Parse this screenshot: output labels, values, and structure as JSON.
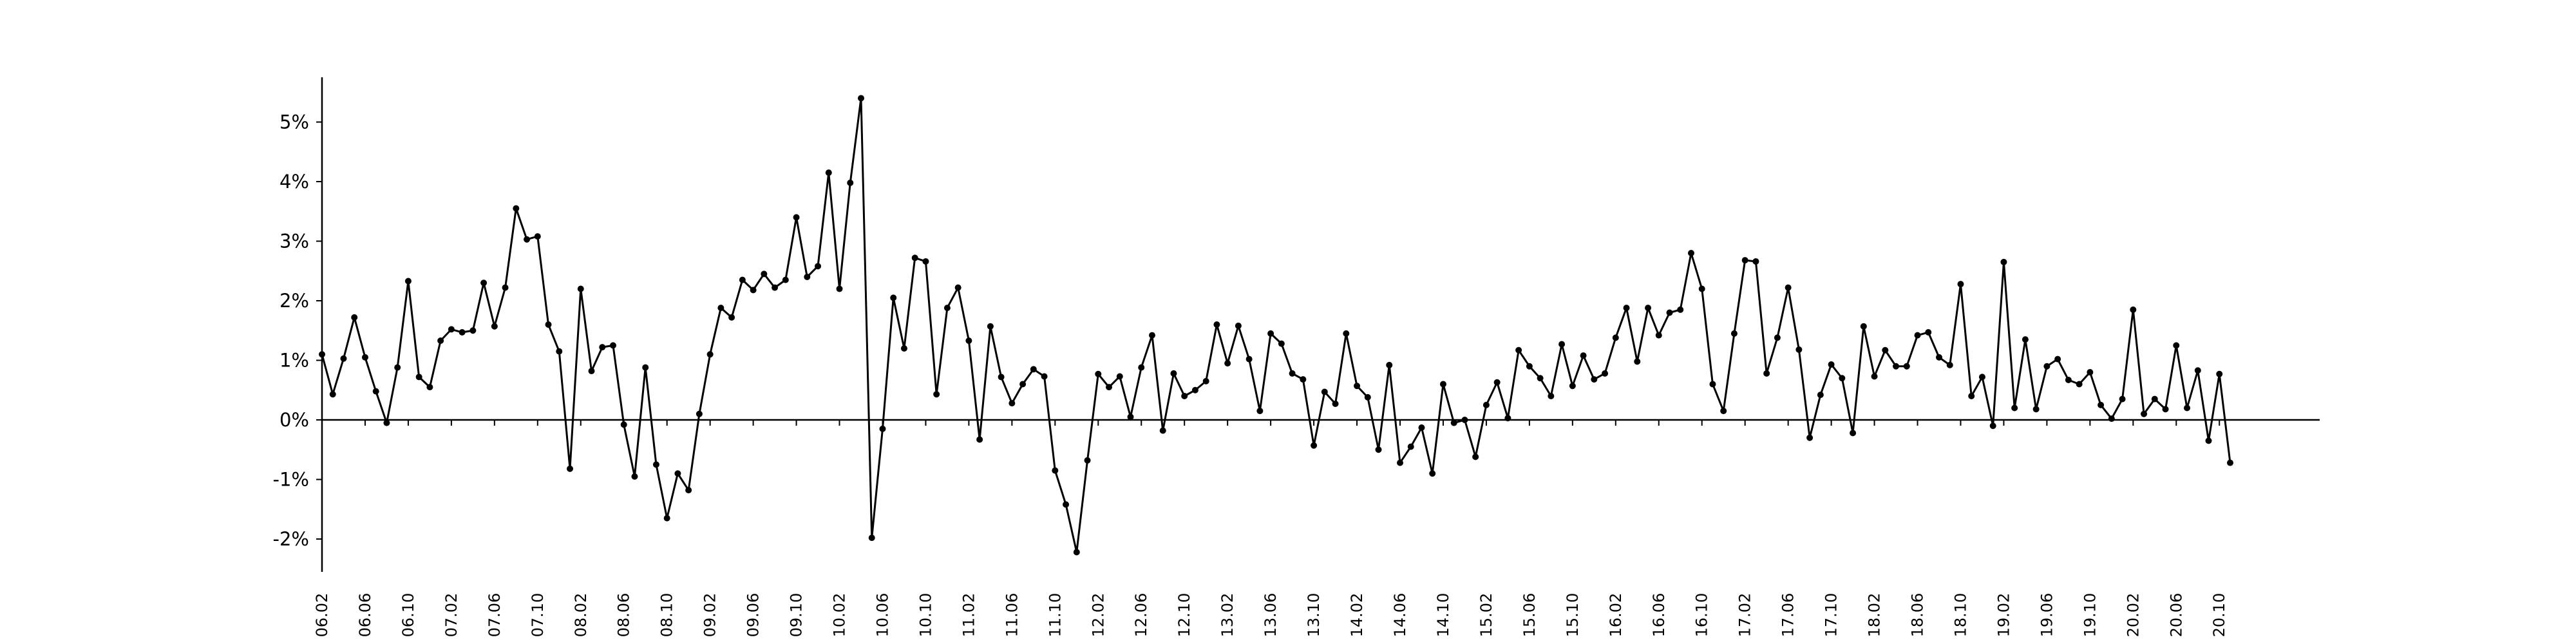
{
  "chart_data": {
    "type": "line",
    "title": "",
    "xlabel": "",
    "ylabel": "",
    "ylim": [
      -2.5,
      5.8
    ],
    "y_ticks": [
      "-2%",
      "-1%",
      "0%",
      "1%",
      "2%",
      "3%",
      "4%",
      "5%"
    ],
    "y_tick_values": [
      -2,
      -1,
      0,
      1,
      2,
      3,
      4,
      5
    ],
    "x_tick_labels": [
      "06.02",
      "06.06",
      "06.10",
      "07.02",
      "07.06",
      "07.10",
      "08.02",
      "08.06",
      "08.10",
      "09.02",
      "09.06",
      "09.10",
      "10.02",
      "10.06",
      "10.10",
      "11.02",
      "11.06",
      "11.10",
      "12.02",
      "12.06",
      "12.10",
      "13.02",
      "13.06",
      "13.10",
      "14.02",
      "14.06",
      "14.10",
      "15.02",
      "15.06",
      "15.10",
      "16.02",
      "16.06",
      "16.10",
      "17.02",
      "17.06",
      "17.10",
      "18.02",
      "18.06",
      "18.10",
      "19.02",
      "19.06",
      "19.10",
      "20.02",
      "20.06",
      "20.10"
    ],
    "grid": false,
    "markers": true,
    "color": "#000000",
    "x_start": "06.02",
    "frequency": "monthly",
    "series": [
      {
        "values": [
          1.1,
          0.43,
          1.03,
          1.72,
          1.05,
          0.48,
          -0.05,
          0.88,
          2.33,
          0.72,
          0.55,
          1.33,
          1.52,
          1.47,
          1.5,
          2.3,
          1.57,
          2.22,
          3.55,
          3.03,
          3.08,
          1.6,
          1.15,
          -0.82,
          2.2,
          0.82,
          1.22,
          1.25,
          -0.08,
          -0.95,
          0.88,
          -0.75,
          -1.65,
          -0.9,
          -1.18,
          0.1,
          1.1,
          1.88,
          1.72,
          2.35,
          2.18,
          2.45,
          2.22,
          2.35,
          3.4,
          2.4,
          2.58,
          4.15,
          2.2,
          3.98,
          5.4,
          -1.98,
          -0.15,
          2.05,
          1.2,
          2.72,
          2.66,
          0.43,
          1.88,
          2.22,
          1.33,
          -0.33,
          1.57,
          0.72,
          0.28,
          0.6,
          0.85,
          0.73,
          -0.85,
          -1.42,
          -2.22,
          -0.68,
          0.77,
          0.55,
          0.73,
          0.05,
          0.88,
          1.42,
          -0.18,
          0.78,
          0.4,
          0.5,
          0.65,
          1.6,
          0.95,
          1.58,
          1.02,
          0.15,
          1.45,
          1.28,
          0.78,
          0.68,
          -0.43,
          0.47,
          0.27,
          1.45,
          0.57,
          0.38,
          -0.5,
          0.92,
          -0.72,
          -0.45,
          -0.13,
          -0.9,
          0.6,
          -0.05,
          0.0,
          -0.62,
          0.25,
          0.63,
          0.03,
          1.17,
          0.9,
          0.7,
          0.4,
          1.27,
          0.57,
          1.08,
          0.68,
          0.78,
          1.38,
          1.88,
          0.98,
          1.88,
          1.42,
          1.8,
          1.85,
          2.8,
          2.2,
          0.6,
          0.15,
          1.45,
          2.68,
          2.66,
          0.78,
          1.38,
          2.22,
          1.18,
          -0.3,
          0.42,
          0.93,
          0.7,
          -0.22,
          1.57,
          0.73,
          1.17,
          0.9,
          0.9,
          1.42,
          1.47,
          1.05,
          0.92,
          2.28,
          0.4,
          0.72,
          -0.1,
          2.65,
          0.2,
          1.35,
          0.18,
          0.9,
          1.02,
          0.67,
          0.6,
          0.8,
          0.25,
          0.02,
          0.35,
          1.85,
          0.1,
          0.35,
          0.18,
          1.25,
          0.2,
          0.83,
          -0.35,
          0.77,
          -0.72
        ]
      }
    ]
  }
}
